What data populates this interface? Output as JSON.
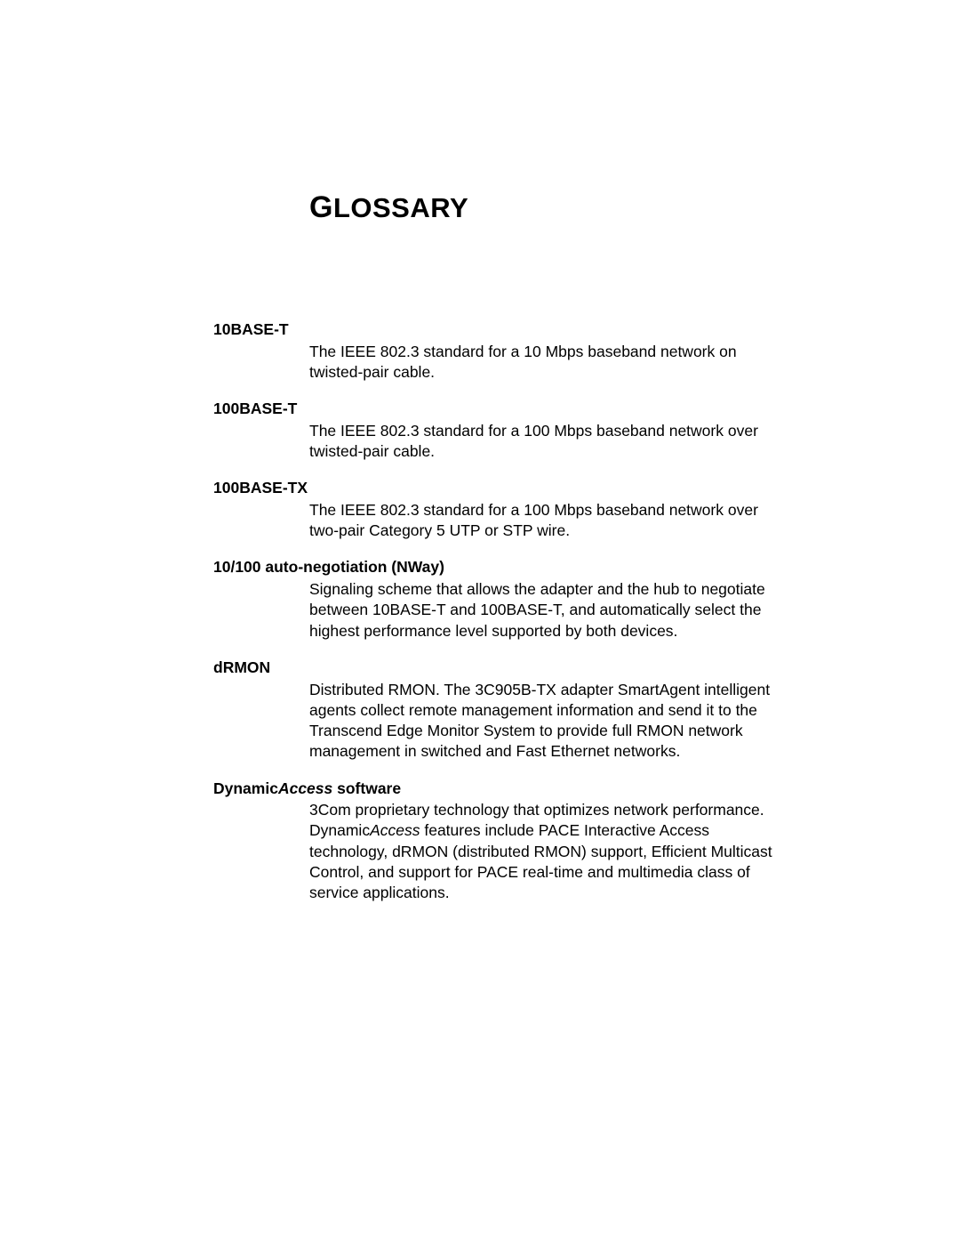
{
  "title_first": "G",
  "title_rest": "LOSSARY",
  "entries": [
    {
      "term_html": "10BASE-T",
      "def_html": "The IEEE 802.3 standard for a 10 Mbps baseband network on twisted-pair cable."
    },
    {
      "term_html": "100BASE-T",
      "def_html": "The IEEE 802.3 standard for a 100 Mbps baseband network over twisted-pair cable."
    },
    {
      "term_html": "100BASE-TX",
      "def_html": "The IEEE 802.3 standard for a 100 Mbps baseband network over two-pair Category 5 UTP or STP wire."
    },
    {
      "term_html": "10/100 auto-negotiation (NWay)",
      "def_html": "Signaling scheme that allows the adapter and the hub to negotiate between 10BASE-T and 100BASE-T, and automatically select the highest performance level supported by both devices."
    },
    {
      "term_html": "dRMON",
      "def_html": "Distributed RMON. The 3C905B-TX adapter SmartAgent intelligent agents collect remote management information and send it to the Transcend Edge Monitor System to provide full RMON network management in switched and Fast Ethernet networks."
    },
    {
      "term_html": "Dynamic<span class=\"italic\">Access</span> software",
      "def_html": "3Com proprietary technology that optimizes network performance. Dynamic<span class=\"italic\">Access</span> features include PACE Interactive Access technology, dRMON (distributed RMON) support, Efficient Multicast Control, and support for PACE real-time and multimedia class of service applications."
    }
  ]
}
